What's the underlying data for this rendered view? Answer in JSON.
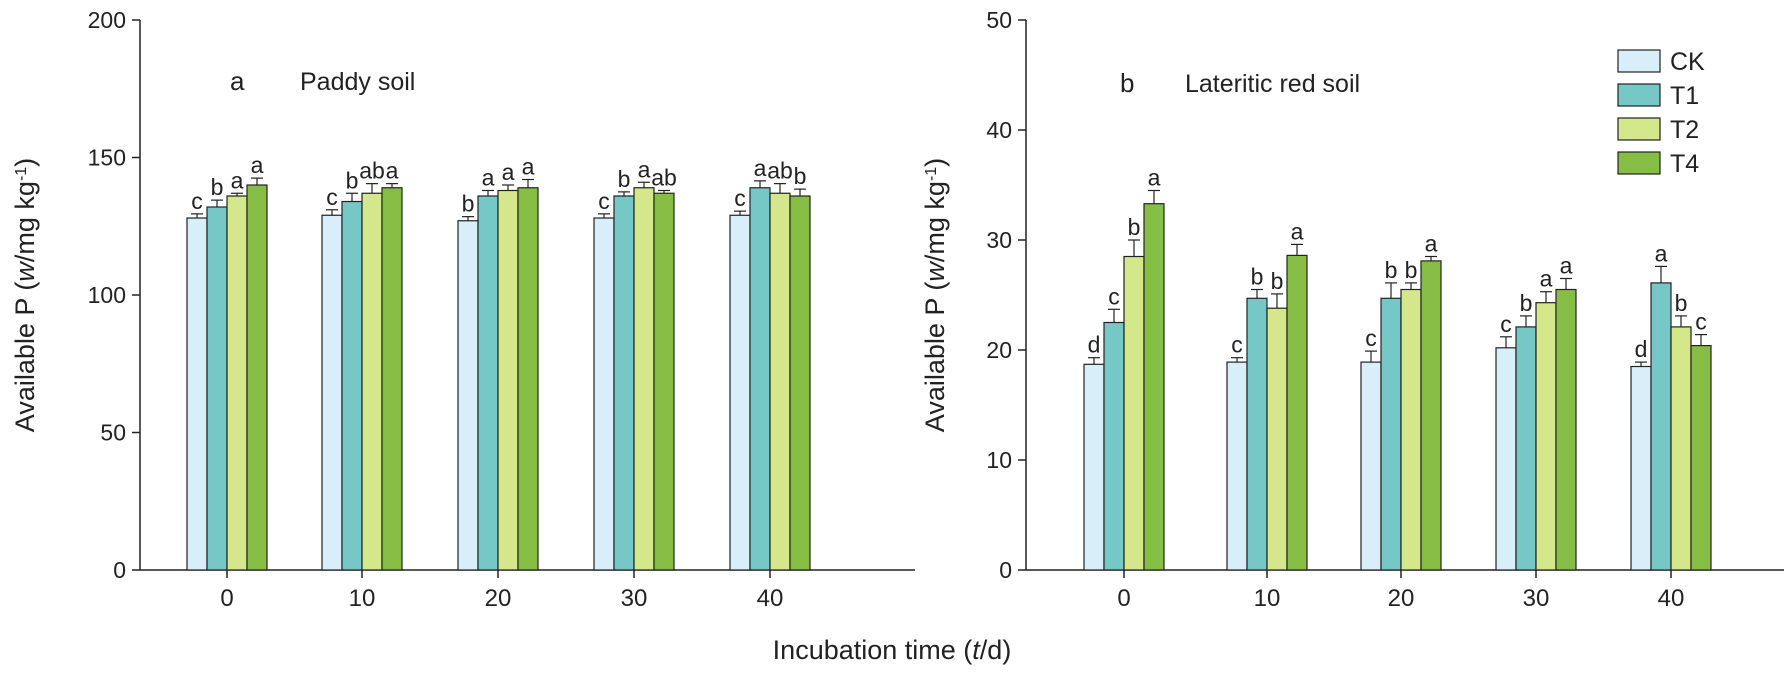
{
  "figure": {
    "xlabel_main": "Incubation time (",
    "xlabel_var": "t",
    "xlabel_unit": "/d)"
  },
  "chart_data": [
    {
      "type": "bar",
      "panel_label": "a",
      "title": "Paddy soil",
      "ylabel_pre": "Available P (",
      "ylabel_var": "w",
      "ylabel_unit": "/mg kg",
      "ylabel_exp": "-1",
      "ylabel_close": ")",
      "ylim": [
        0,
        200
      ],
      "yticks": [
        0,
        50,
        100,
        150,
        200
      ],
      "categories": [
        "0",
        "10",
        "20",
        "30",
        "40"
      ],
      "series": [
        {
          "name": "CK",
          "values": [
            128,
            129,
            127,
            128,
            129
          ],
          "errors": [
            1.5,
            2,
            1.5,
            1.5,
            1.5
          ],
          "letters": [
            "c",
            "c",
            "b",
            "c",
            "c"
          ]
        },
        {
          "name": "T1",
          "values": [
            132,
            134,
            136,
            136,
            139
          ],
          "errors": [
            2.5,
            3,
            2,
            1.5,
            2.5
          ],
          "letters": [
            "b",
            "b",
            "a",
            "b",
            "a"
          ]
        },
        {
          "name": "T2",
          "values": [
            136,
            137,
            138,
            139,
            137
          ],
          "errors": [
            1,
            3.5,
            2,
            2,
            3.5
          ],
          "letters": [
            "a",
            "ab",
            "a",
            "a",
            "ab"
          ]
        },
        {
          "name": "T4",
          "values": [
            140,
            139,
            139,
            137,
            136
          ],
          "errors": [
            2.5,
            1.5,
            3,
            1,
            2.5
          ],
          "letters": [
            "a",
            "a",
            "a",
            "ab",
            "b"
          ]
        }
      ]
    },
    {
      "type": "bar",
      "panel_label": "b",
      "title": "Lateritic red soil",
      "ylabel_pre": "Available P (",
      "ylabel_var": "w",
      "ylabel_unit": "/mg kg",
      "ylabel_exp": "-1",
      "ylabel_close": ")",
      "ylim": [
        0,
        50
      ],
      "yticks": [
        0,
        10,
        20,
        30,
        40,
        50
      ],
      "categories": [
        "0",
        "10",
        "20",
        "30",
        "40"
      ],
      "legend": {
        "position": "top-right",
        "entries": [
          "CK",
          "T1",
          "T2",
          "T4"
        ]
      },
      "series": [
        {
          "name": "CK",
          "values": [
            18.7,
            18.9,
            18.9,
            20.2,
            18.5
          ],
          "errors": [
            0.6,
            0.4,
            1.0,
            1.0,
            0.4
          ],
          "letters": [
            "d",
            "c",
            "c",
            "c",
            "d"
          ]
        },
        {
          "name": "T1",
          "values": [
            22.5,
            24.7,
            24.7,
            22.1,
            26.1
          ],
          "errors": [
            1.2,
            0.8,
            1.4,
            1.0,
            1.5
          ],
          "letters": [
            "c",
            "b",
            "b",
            "b",
            "a"
          ]
        },
        {
          "name": "T2",
          "values": [
            28.5,
            23.8,
            25.5,
            24.3,
            22.1
          ],
          "errors": [
            1.5,
            1.3,
            0.6,
            1.0,
            1.0
          ],
          "letters": [
            "b",
            "b",
            "b",
            "a",
            "b"
          ]
        },
        {
          "name": "T4",
          "values": [
            33.3,
            28.6,
            28.1,
            25.5,
            20.4
          ],
          "errors": [
            1.2,
            1.0,
            0.4,
            1.0,
            1.0
          ],
          "letters": [
            "a",
            "a",
            "a",
            "a",
            "c"
          ]
        }
      ]
    }
  ],
  "colors": {
    "CK": "#d8eef8",
    "T1": "#76c8c6",
    "T2": "#d4e78a",
    "T4": "#86bd44"
  }
}
